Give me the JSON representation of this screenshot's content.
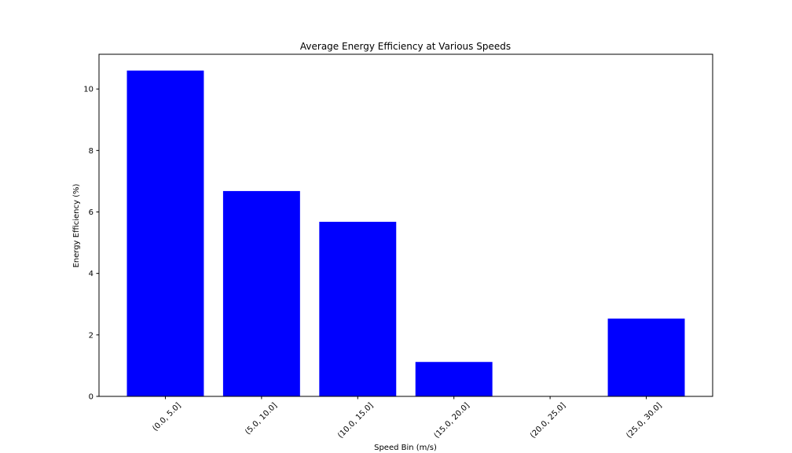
{
  "chart_data": {
    "type": "bar",
    "title": "Average Energy Efficiency at Various Speeds",
    "xlabel": "Speed Bin (m/s)",
    "ylabel": "Energy Efficiency (%)",
    "categories": [
      "(0.0, 5.0]",
      "(5.0, 10.0]",
      "(10.0, 15.0]",
      "(15.0, 20.0]",
      "(20.0, 25.0]",
      "(25.0, 30.0]"
    ],
    "values": [
      10.6,
      6.68,
      5.68,
      1.12,
      0,
      2.53
    ],
    "ylim": [
      0,
      11.13
    ],
    "yticks": [
      0,
      2,
      4,
      6,
      8,
      10
    ],
    "bar_color": "#0000ff",
    "grid": false,
    "x_tick_rotation": 45
  }
}
